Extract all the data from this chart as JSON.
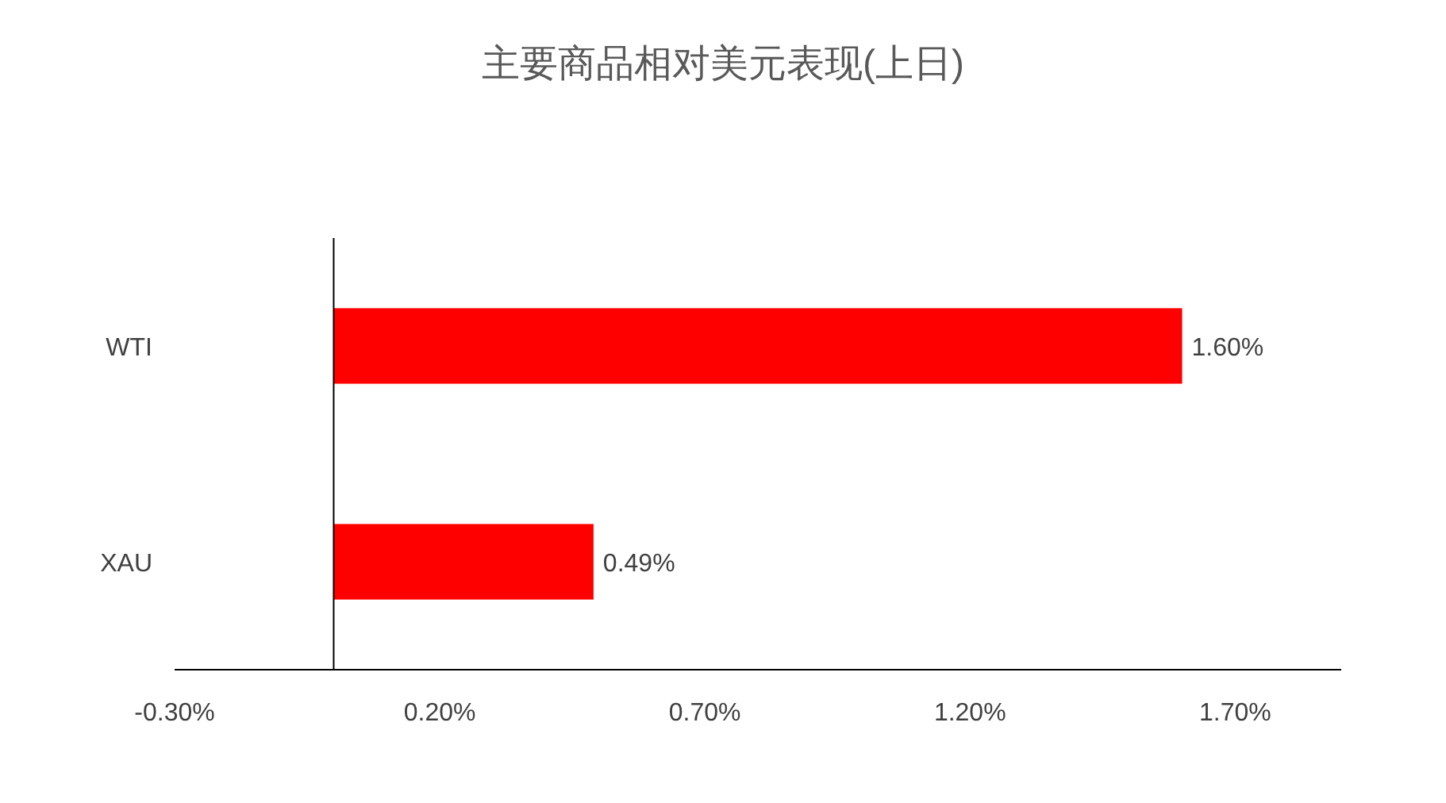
{
  "chart_data": {
    "type": "bar",
    "orientation": "horizontal",
    "title": "主要商品相对美元表现(上日)",
    "categories": [
      "WTI",
      "XAU"
    ],
    "values": [
      1.6,
      0.49
    ],
    "value_labels": [
      "1.60%",
      "0.49%"
    ],
    "color": "#ff0000",
    "xlim": [
      -0.3,
      1.9
    ],
    "xticks": [
      {
        "value": -0.3,
        "label": "-0.30%"
      },
      {
        "value": 0.2,
        "label": "0.20%"
      },
      {
        "value": 0.7,
        "label": "0.70%"
      },
      {
        "value": 1.2,
        "label": "1.20%"
      },
      {
        "value": 1.7,
        "label": "1.70%"
      }
    ]
  }
}
